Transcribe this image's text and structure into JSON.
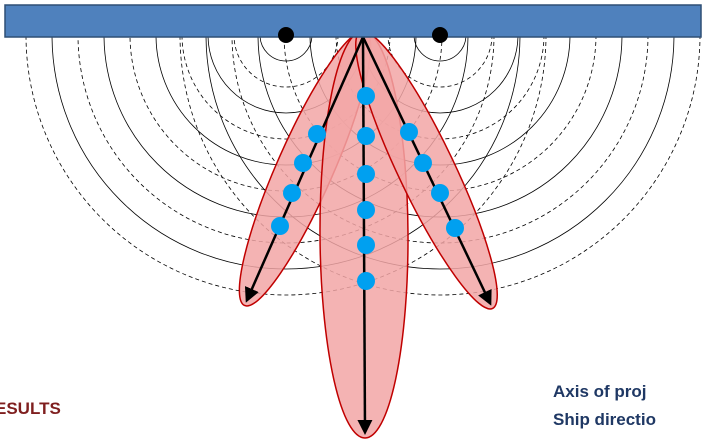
{
  "labels": {
    "results": "ESULTS",
    "axis_of_projection": "Axis of proj",
    "ship_direction": "Ship directio"
  },
  "colors": {
    "ship_bar_fill": "#4F81BD",
    "ship_bar_stroke": "#2F4F75",
    "beam_fill": "#F2A6A6",
    "beam_stroke": "#C00000",
    "receiver_dot": "#00A0F0",
    "source_dot": "#000000",
    "results_text": "#7F1F1F",
    "legend_text": "#1F3864"
  },
  "diagram": {
    "sources": 2,
    "wavefronts_per_source": 10,
    "beams": [
      {
        "name": "left-beam",
        "receivers": 4
      },
      {
        "name": "center-beam",
        "receivers": 6
      },
      {
        "name": "right-beam",
        "receivers": 4
      }
    ]
  }
}
